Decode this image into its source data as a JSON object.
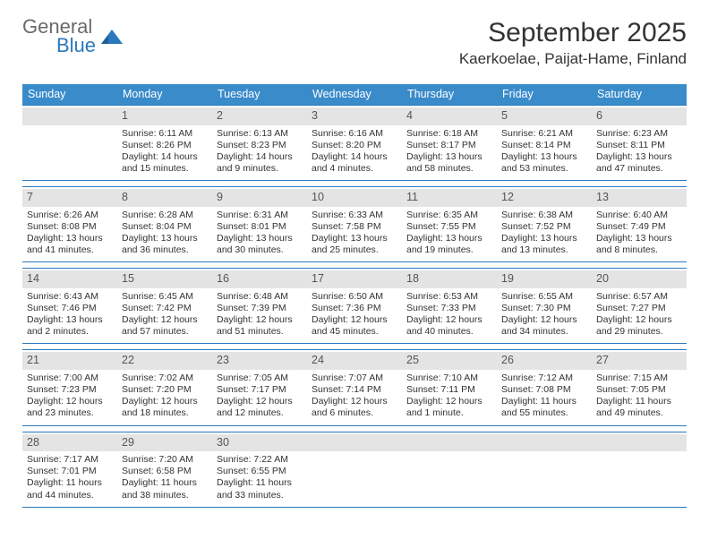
{
  "logo": {
    "text1": "General",
    "text2": "Blue"
  },
  "title": "September 2025",
  "subtitle": "Kaerkoelae, Paijat-Hame, Finland",
  "weekdays": [
    "Sunday",
    "Monday",
    "Tuesday",
    "Wednesday",
    "Thursday",
    "Friday",
    "Saturday"
  ],
  "colors": {
    "header_bg": "#3a8bca",
    "border": "#2a78bd",
    "daynum_bg": "#e4e4e4"
  },
  "weeks": [
    [
      {
        "day": "",
        "sunrise": "",
        "sunset": "",
        "daylight": ""
      },
      {
        "day": "1",
        "sunrise": "Sunrise: 6:11 AM",
        "sunset": "Sunset: 8:26 PM",
        "daylight": "Daylight: 14 hours and 15 minutes."
      },
      {
        "day": "2",
        "sunrise": "Sunrise: 6:13 AM",
        "sunset": "Sunset: 8:23 PM",
        "daylight": "Daylight: 14 hours and 9 minutes."
      },
      {
        "day": "3",
        "sunrise": "Sunrise: 6:16 AM",
        "sunset": "Sunset: 8:20 PM",
        "daylight": "Daylight: 14 hours and 4 minutes."
      },
      {
        "day": "4",
        "sunrise": "Sunrise: 6:18 AM",
        "sunset": "Sunset: 8:17 PM",
        "daylight": "Daylight: 13 hours and 58 minutes."
      },
      {
        "day": "5",
        "sunrise": "Sunrise: 6:21 AM",
        "sunset": "Sunset: 8:14 PM",
        "daylight": "Daylight: 13 hours and 53 minutes."
      },
      {
        "day": "6",
        "sunrise": "Sunrise: 6:23 AM",
        "sunset": "Sunset: 8:11 PM",
        "daylight": "Daylight: 13 hours and 47 minutes."
      }
    ],
    [
      {
        "day": "7",
        "sunrise": "Sunrise: 6:26 AM",
        "sunset": "Sunset: 8:08 PM",
        "daylight": "Daylight: 13 hours and 41 minutes."
      },
      {
        "day": "8",
        "sunrise": "Sunrise: 6:28 AM",
        "sunset": "Sunset: 8:04 PM",
        "daylight": "Daylight: 13 hours and 36 minutes."
      },
      {
        "day": "9",
        "sunrise": "Sunrise: 6:31 AM",
        "sunset": "Sunset: 8:01 PM",
        "daylight": "Daylight: 13 hours and 30 minutes."
      },
      {
        "day": "10",
        "sunrise": "Sunrise: 6:33 AM",
        "sunset": "Sunset: 7:58 PM",
        "daylight": "Daylight: 13 hours and 25 minutes."
      },
      {
        "day": "11",
        "sunrise": "Sunrise: 6:35 AM",
        "sunset": "Sunset: 7:55 PM",
        "daylight": "Daylight: 13 hours and 19 minutes."
      },
      {
        "day": "12",
        "sunrise": "Sunrise: 6:38 AM",
        "sunset": "Sunset: 7:52 PM",
        "daylight": "Daylight: 13 hours and 13 minutes."
      },
      {
        "day": "13",
        "sunrise": "Sunrise: 6:40 AM",
        "sunset": "Sunset: 7:49 PM",
        "daylight": "Daylight: 13 hours and 8 minutes."
      }
    ],
    [
      {
        "day": "14",
        "sunrise": "Sunrise: 6:43 AM",
        "sunset": "Sunset: 7:46 PM",
        "daylight": "Daylight: 13 hours and 2 minutes."
      },
      {
        "day": "15",
        "sunrise": "Sunrise: 6:45 AM",
        "sunset": "Sunset: 7:42 PM",
        "daylight": "Daylight: 12 hours and 57 minutes."
      },
      {
        "day": "16",
        "sunrise": "Sunrise: 6:48 AM",
        "sunset": "Sunset: 7:39 PM",
        "daylight": "Daylight: 12 hours and 51 minutes."
      },
      {
        "day": "17",
        "sunrise": "Sunrise: 6:50 AM",
        "sunset": "Sunset: 7:36 PM",
        "daylight": "Daylight: 12 hours and 45 minutes."
      },
      {
        "day": "18",
        "sunrise": "Sunrise: 6:53 AM",
        "sunset": "Sunset: 7:33 PM",
        "daylight": "Daylight: 12 hours and 40 minutes."
      },
      {
        "day": "19",
        "sunrise": "Sunrise: 6:55 AM",
        "sunset": "Sunset: 7:30 PM",
        "daylight": "Daylight: 12 hours and 34 minutes."
      },
      {
        "day": "20",
        "sunrise": "Sunrise: 6:57 AM",
        "sunset": "Sunset: 7:27 PM",
        "daylight": "Daylight: 12 hours and 29 minutes."
      }
    ],
    [
      {
        "day": "21",
        "sunrise": "Sunrise: 7:00 AM",
        "sunset": "Sunset: 7:23 PM",
        "daylight": "Daylight: 12 hours and 23 minutes."
      },
      {
        "day": "22",
        "sunrise": "Sunrise: 7:02 AM",
        "sunset": "Sunset: 7:20 PM",
        "daylight": "Daylight: 12 hours and 18 minutes."
      },
      {
        "day": "23",
        "sunrise": "Sunrise: 7:05 AM",
        "sunset": "Sunset: 7:17 PM",
        "daylight": "Daylight: 12 hours and 12 minutes."
      },
      {
        "day": "24",
        "sunrise": "Sunrise: 7:07 AM",
        "sunset": "Sunset: 7:14 PM",
        "daylight": "Daylight: 12 hours and 6 minutes."
      },
      {
        "day": "25",
        "sunrise": "Sunrise: 7:10 AM",
        "sunset": "Sunset: 7:11 PM",
        "daylight": "Daylight: 12 hours and 1 minute."
      },
      {
        "day": "26",
        "sunrise": "Sunrise: 7:12 AM",
        "sunset": "Sunset: 7:08 PM",
        "daylight": "Daylight: 11 hours and 55 minutes."
      },
      {
        "day": "27",
        "sunrise": "Sunrise: 7:15 AM",
        "sunset": "Sunset: 7:05 PM",
        "daylight": "Daylight: 11 hours and 49 minutes."
      }
    ],
    [
      {
        "day": "28",
        "sunrise": "Sunrise: 7:17 AM",
        "sunset": "Sunset: 7:01 PM",
        "daylight": "Daylight: 11 hours and 44 minutes."
      },
      {
        "day": "29",
        "sunrise": "Sunrise: 7:20 AM",
        "sunset": "Sunset: 6:58 PM",
        "daylight": "Daylight: 11 hours and 38 minutes."
      },
      {
        "day": "30",
        "sunrise": "Sunrise: 7:22 AM",
        "sunset": "Sunset: 6:55 PM",
        "daylight": "Daylight: 11 hours and 33 minutes."
      },
      {
        "day": "",
        "sunrise": "",
        "sunset": "",
        "daylight": ""
      },
      {
        "day": "",
        "sunrise": "",
        "sunset": "",
        "daylight": ""
      },
      {
        "day": "",
        "sunrise": "",
        "sunset": "",
        "daylight": ""
      },
      {
        "day": "",
        "sunrise": "",
        "sunset": "",
        "daylight": ""
      }
    ]
  ]
}
